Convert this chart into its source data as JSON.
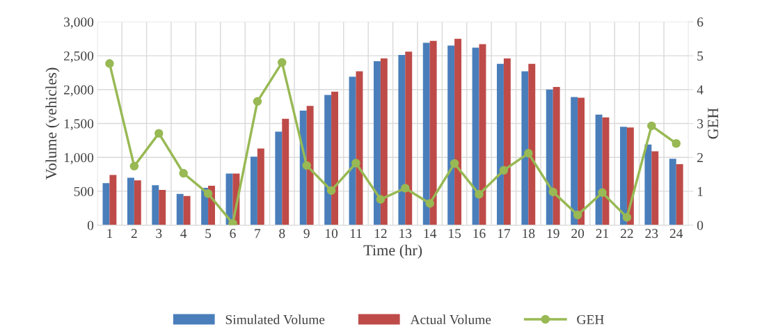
{
  "chart_data": {
    "type": "bar",
    "xlabel": "Time (hr)",
    "ylabel": "Volume (vehicles)",
    "y2label": "GEH",
    "categories": [
      "1",
      "2",
      "3",
      "4",
      "5",
      "6",
      "7",
      "8",
      "9",
      "10",
      "11",
      "12",
      "13",
      "14",
      "15",
      "16",
      "17",
      "18",
      "19",
      "20",
      "21",
      "22",
      "23",
      "24"
    ],
    "series": [
      {
        "name": "Simulated Volume",
        "color": "#4a7ebb",
        "values": [
          620,
          700,
          590,
          460,
          550,
          760,
          1010,
          1380,
          1690,
          1920,
          2190,
          2420,
          2510,
          2690,
          2650,
          2620,
          2380,
          2270,
          2000,
          1890,
          1630,
          1450,
          1190,
          980
        ]
      },
      {
        "name": "Actual Volume",
        "color": "#be4b48",
        "values": [
          740,
          660,
          520,
          430,
          580,
          760,
          1130,
          1570,
          1760,
          1970,
          2270,
          2460,
          2560,
          2720,
          2750,
          2670,
          2460,
          2380,
          2040,
          1880,
          1590,
          1440,
          1090,
          900
        ]
      },
      {
        "name": "GEH",
        "type": "line",
        "axis": "y2",
        "color": "#98b954",
        "marker": "circle",
        "values": [
          4.77,
          1.74,
          2.71,
          1.53,
          0.93,
          0.05,
          3.65,
          4.8,
          1.76,
          1.02,
          1.83,
          0.76,
          1.09,
          0.64,
          1.82,
          0.91,
          1.62,
          2.12,
          0.98,
          0.3,
          0.96,
          0.23,
          2.93,
          2.41
        ]
      }
    ],
    "ylim": [
      0,
      3000
    ],
    "yticks": [
      {
        "value": 0,
        "label": "0"
      },
      {
        "value": 500,
        "label": "500"
      },
      {
        "value": 1000,
        "label": "1,000"
      },
      {
        "value": 1500,
        "label": "1,500"
      },
      {
        "value": 2000,
        "label": "2,000"
      },
      {
        "value": 2500,
        "label": "2,500"
      },
      {
        "value": 3000,
        "label": "3,000"
      }
    ],
    "y2lim": [
      0,
      6
    ],
    "y2ticks": [
      0,
      1,
      2,
      3,
      4,
      5,
      6
    ],
    "grid": true,
    "legend": "bottom"
  }
}
